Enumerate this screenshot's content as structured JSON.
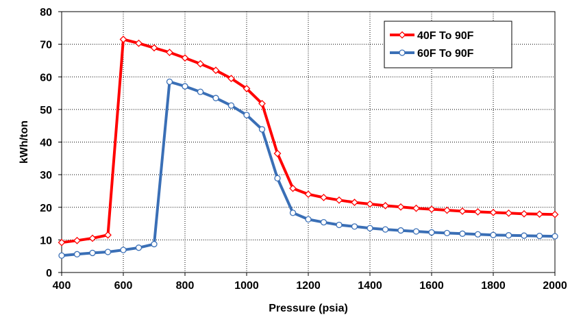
{
  "chart_data": {
    "type": "line",
    "title": "",
    "xlabel": "Pressure (psia)",
    "ylabel": "kWh/ton",
    "xlim": [
      400,
      2000
    ],
    "ylim": [
      0,
      80
    ],
    "xticks": [
      400,
      600,
      800,
      1000,
      1200,
      1400,
      1600,
      1800,
      2000
    ],
    "yticks": [
      0,
      10,
      20,
      30,
      40,
      50,
      60,
      70,
      80
    ],
    "grid": true,
    "legend_position": "top-right",
    "x": [
      400,
      450,
      500,
      550,
      600,
      650,
      700,
      750,
      800,
      850,
      900,
      950,
      1000,
      1050,
      1100,
      1150,
      1200,
      1250,
      1300,
      1350,
      1400,
      1450,
      1500,
      1550,
      1600,
      1650,
      1700,
      1750,
      1800,
      1850,
      1900,
      1950,
      2000
    ],
    "series": [
      {
        "name": "40F To 90F",
        "color": "#ff0000",
        "marker": "diamond",
        "values": [
          9.2,
          9.8,
          10.5,
          11.5,
          71.5,
          70.3,
          68.9,
          67.5,
          65.8,
          64.0,
          62.0,
          59.5,
          56.4,
          51.8,
          36.5,
          25.8,
          24.0,
          23.0,
          22.2,
          21.5,
          21.0,
          20.5,
          20.1,
          19.7,
          19.4,
          19.1,
          18.8,
          18.6,
          18.4,
          18.2,
          18.0,
          17.9,
          17.8
        ]
      },
      {
        "name": "60F To 90F",
        "color": "#3a6fb6",
        "marker": "circle",
        "values": [
          5.2,
          5.6,
          6.0,
          6.3,
          6.9,
          7.6,
          8.7,
          58.5,
          57.1,
          55.4,
          53.5,
          51.2,
          48.3,
          43.9,
          28.9,
          18.3,
          16.3,
          15.4,
          14.6,
          14.1,
          13.6,
          13.2,
          12.9,
          12.6,
          12.3,
          12.1,
          11.9,
          11.7,
          11.5,
          11.4,
          11.3,
          11.2,
          11.1
        ]
      }
    ]
  }
}
